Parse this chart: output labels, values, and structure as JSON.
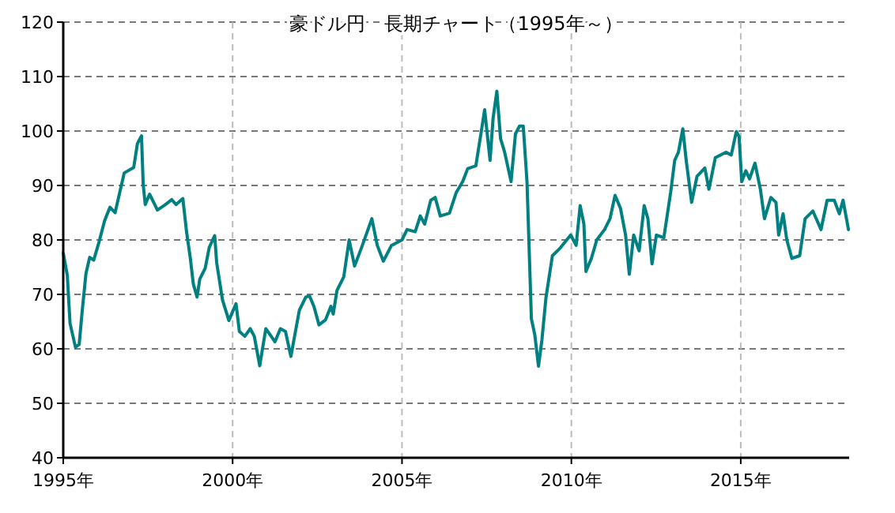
{
  "chart_data": {
    "type": "line",
    "title": "豪ドル円　長期チャート（1995年～）",
    "x": [
      1995.0,
      1995.12,
      1995.2,
      1995.36,
      1995.47,
      1995.56,
      1995.67,
      1995.78,
      1995.9,
      1996.06,
      1996.22,
      1996.38,
      1996.53,
      1996.8,
      1997.08,
      1997.19,
      1997.31,
      1997.36,
      1997.42,
      1997.55,
      1997.78,
      1998.02,
      1998.2,
      1998.33,
      1998.53,
      1998.64,
      1998.75,
      1998.84,
      1998.95,
      1999.03,
      1999.19,
      1999.31,
      1999.47,
      1999.53,
      1999.7,
      1999.89,
      2000.1,
      2000.2,
      2000.36,
      2000.52,
      2000.64,
      2000.8,
      2000.98,
      2001.14,
      2001.25,
      2001.41,
      2001.56,
      2001.72,
      2001.97,
      2002.16,
      2002.27,
      2002.4,
      2002.55,
      2002.74,
      2002.9,
      2002.97,
      2003.08,
      2003.28,
      2003.44,
      2003.6,
      2003.83,
      2004.11,
      2004.27,
      2004.45,
      2004.69,
      2005.0,
      2005.15,
      2005.39,
      2005.54,
      2005.67,
      2005.85,
      2005.98,
      2006.13,
      2006.4,
      2006.6,
      2006.79,
      2006.94,
      2007.18,
      2007.33,
      2007.44,
      2007.6,
      2007.69,
      2007.8,
      2007.91,
      2008.03,
      2008.22,
      2008.35,
      2008.47,
      2008.58,
      2008.69,
      2008.77,
      2008.82,
      2008.92,
      2009.03,
      2009.13,
      2009.25,
      2009.44,
      2009.67,
      2009.98,
      2010.14,
      2010.26,
      2010.37,
      2010.43,
      2010.59,
      2010.75,
      2010.98,
      2011.14,
      2011.29,
      2011.45,
      2011.6,
      2011.71,
      2011.84,
      2012.0,
      2012.15,
      2012.26,
      2012.38,
      2012.51,
      2012.73,
      2012.93,
      2013.05,
      2013.16,
      2013.29,
      2013.39,
      2013.55,
      2013.71,
      2013.94,
      2014.06,
      2014.25,
      2014.56,
      2014.72,
      2014.87,
      2014.95,
      2015.03,
      2015.15,
      2015.26,
      2015.42,
      2015.58,
      2015.7,
      2015.89,
      2016.04,
      2016.12,
      2016.25,
      2016.36,
      2016.51,
      2016.74,
      2016.9,
      2017.13,
      2017.37,
      2017.55,
      2017.76,
      2017.91,
      2018.02,
      2018.18
    ],
    "series": [
      {
        "color": "#008080",
        "values": [
          77.6,
          73.5,
          64.7,
          60.3,
          60.8,
          67,
          73.8,
          76.8,
          76.3,
          79.7,
          83.5,
          86,
          85,
          92.3,
          93.3,
          97.7,
          99.1,
          90.2,
          86.5,
          88.4,
          85.5,
          86.5,
          87.4,
          86.5,
          87.6,
          81.5,
          76.7,
          71.9,
          69.5,
          72.8,
          74.8,
          78.6,
          80.8,
          75.8,
          69,
          65.2,
          68.3,
          63.2,
          62.3,
          63.7,
          62.3,
          56.9,
          63.7,
          62.3,
          61.3,
          63.7,
          63.2,
          58.6,
          67.1,
          69.5,
          69.7,
          67.8,
          64.4,
          65.3,
          67.8,
          66.4,
          70.7,
          73.2,
          80,
          75.2,
          79,
          83.9,
          79,
          76.1,
          79,
          80,
          81.9,
          81.5,
          84.4,
          82.9,
          87.3,
          87.8,
          84.4,
          84.9,
          88.7,
          90.7,
          93.1,
          93.6,
          99.5,
          103.9,
          94.6,
          102.4,
          107.3,
          98.6,
          96.1,
          90.7,
          99.5,
          100.9,
          100.9,
          90.7,
          75.2,
          65.5,
          62.6,
          56.8,
          61.6,
          69.4,
          77.1,
          78.5,
          80.9,
          79,
          86.3,
          82.9,
          74.2,
          76.6,
          80,
          81.9,
          83.9,
          88.2,
          85.8,
          80.9,
          73.7,
          80.9,
          78,
          86.3,
          83.9,
          75.6,
          80.9,
          80.4,
          88.7,
          94.6,
          96.1,
          100.4,
          94.6,
          86.9,
          91.7,
          93.2,
          89.3,
          95.1,
          96.1,
          95.6,
          99.9,
          99,
          90.7,
          92.7,
          91.2,
          94.1,
          89.3,
          83.9,
          87.8,
          86.9,
          80.9,
          84.8,
          80,
          76.6,
          77.1,
          83.9,
          85.3,
          81.9,
          87.3,
          87.3,
          84.8,
          87.3,
          81.9
        ]
      }
    ],
    "xlim": [
      1995,
      2018.2
    ],
    "xticks": [
      {
        "value": 1995,
        "label": "1995年"
      },
      {
        "value": 2000,
        "label": "2000年"
      },
      {
        "value": 2005,
        "label": "2005年"
      },
      {
        "value": 2010,
        "label": "2010年"
      },
      {
        "value": 2015,
        "label": "2015年"
      }
    ],
    "ylim": [
      40,
      120
    ],
    "yticks": [
      40,
      50,
      60,
      70,
      80,
      90,
      100,
      110,
      120
    ],
    "grid": true,
    "line_style": "solid",
    "marker": "none"
  }
}
